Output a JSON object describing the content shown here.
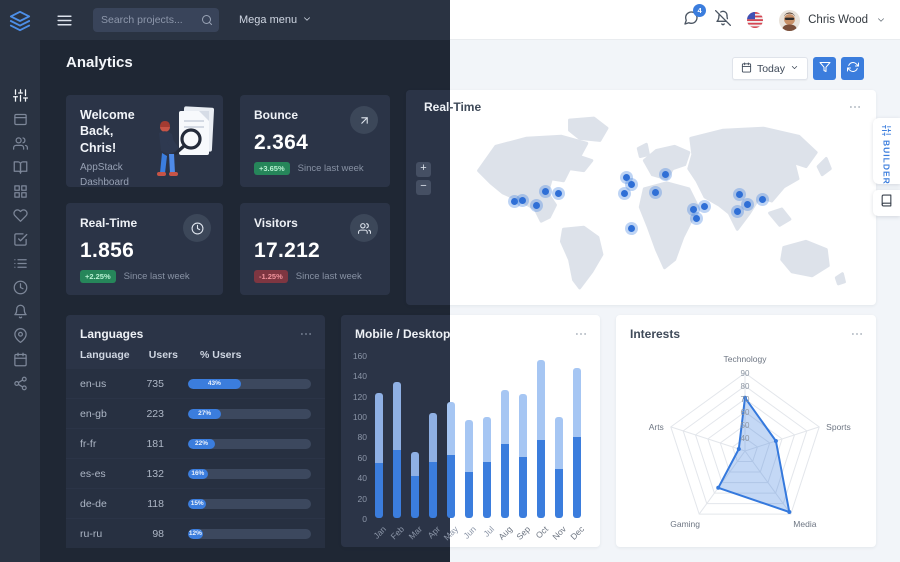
{
  "navbar": {
    "search_placeholder": "Search projects...",
    "mega_menu_label": "Mega menu",
    "user_name": "Chris Wood",
    "notification_count": "4"
  },
  "sidebar": {
    "items": [
      {
        "name": "sliders",
        "active": true
      },
      {
        "name": "window",
        "active": false
      },
      {
        "name": "users",
        "active": false
      },
      {
        "name": "book-open",
        "active": false
      },
      {
        "name": "grid",
        "active": false
      },
      {
        "name": "heart",
        "active": false
      },
      {
        "name": "check-square",
        "active": false
      },
      {
        "name": "list",
        "active": false
      },
      {
        "name": "clock",
        "active": false
      },
      {
        "name": "bell",
        "active": false
      },
      {
        "name": "map-pin",
        "active": false
      },
      {
        "name": "calendar",
        "active": false
      },
      {
        "name": "share-2",
        "active": false
      }
    ]
  },
  "page": {
    "title": "Analytics"
  },
  "controls": {
    "today_label": "Today"
  },
  "welcome": {
    "title": "Welcome\nBack,\nChris!",
    "subtitle": "AppStack\nDashboard"
  },
  "stats": [
    {
      "label": "Bounce",
      "value": "2.364",
      "delta": "+3.65%",
      "direction": "up",
      "note": "Since last week",
      "icon": "arrow-up-right"
    },
    {
      "label": "Real-Time",
      "value": "1.856",
      "delta": "+2.25%",
      "direction": "up",
      "note": "Since last week",
      "icon": "clock"
    },
    {
      "label": "Visitors",
      "value": "17.212",
      "delta": "-1.25%",
      "direction": "down",
      "note": "Since last week",
      "icon": "users"
    }
  ],
  "map_card": {
    "title": "Real-Time",
    "zoom_in": "+",
    "zoom_out": "−"
  },
  "languages": {
    "title": "Languages",
    "columns": [
      "Language",
      "Users",
      "% Users"
    ],
    "rows": [
      {
        "language": "en-us",
        "users": "735",
        "pct": 43,
        "pct_label": "43%"
      },
      {
        "language": "en-gb",
        "users": "223",
        "pct": 27,
        "pct_label": "27%"
      },
      {
        "language": "fr-fr",
        "users": "181",
        "pct": 22,
        "pct_label": "22%"
      },
      {
        "language": "es-es",
        "users": "132",
        "pct": 16,
        "pct_label": "16%"
      },
      {
        "language": "de-de",
        "users": "118",
        "pct": 15,
        "pct_label": "15%"
      },
      {
        "language": "ru-ru",
        "users": "98",
        "pct": 12,
        "pct_label": "12%"
      }
    ]
  },
  "chart_data": [
    {
      "id": "mobile_desktop",
      "type": "bar",
      "stacked": true,
      "title": "Mobile / Desktop",
      "categories": [
        "Jan",
        "Feb",
        "Mar",
        "Apr",
        "May",
        "Jun",
        "Jul",
        "Aug",
        "Sep",
        "Oct",
        "Nov",
        "Dec"
      ],
      "series": [
        {
          "name": "Mobile",
          "values": [
            54,
            67,
            41,
            55,
            62,
            45,
            55,
            73,
            60,
            76,
            48,
            79
          ]
        },
        {
          "name": "Desktop",
          "values": [
            69,
            66,
            24,
            48,
            52,
            51,
            44,
            53,
            62,
            79,
            51,
            68
          ]
        }
      ],
      "ylim": [
        0,
        160
      ],
      "yticks": [
        0,
        20,
        40,
        60,
        80,
        100,
        120,
        140,
        160
      ],
      "grid": false,
      "legend": "none"
    },
    {
      "id": "interests",
      "type": "radar",
      "title": "Interests",
      "axes": [
        "Technology",
        "Sports",
        "Media",
        "Gaming",
        "Arts"
      ],
      "values": [
        71,
        55,
        88,
        65,
        35
      ],
      "scale_min": 30,
      "scale_max": 90,
      "ticks": [
        40,
        50,
        60,
        70,
        80,
        90
      ]
    },
    {
      "id": "realtime_map",
      "type": "map",
      "title": "Real-Time",
      "markers_pct": [
        [
          15.2,
          48.4
        ],
        [
          17.1,
          47.9
        ],
        [
          20.5,
          50.5
        ],
        [
          22.7,
          43.2
        ],
        [
          25.8,
          44.2
        ],
        [
          41.9,
          35.8
        ],
        [
          43.1,
          39.5
        ],
        [
          41.4,
          44.2
        ],
        [
          48.9,
          43.7
        ],
        [
          51.1,
          34.2
        ],
        [
          43.1,
          62.6
        ],
        [
          57.8,
          52.6
        ],
        [
          58.6,
          57.4
        ],
        [
          60.5,
          51.1
        ],
        [
          68.7,
          44.7
        ],
        [
          70.6,
          50.0
        ],
        [
          68.4,
          53.7
        ],
        [
          74.2,
          47.4
        ]
      ]
    }
  ],
  "builder": {
    "label": "BUILDER"
  },
  "icons": {
    "logo_icon": "layers",
    "menu_icon": "menu",
    "search_icon": "search",
    "caret_icon": "chevron-down",
    "chat_icon": "message-circle",
    "mute_icon": "bell-off",
    "calendar_icon": "calendar",
    "filter_icon": "filter",
    "refresh_icon": "refresh-cw",
    "ellipsis_icon": "more-horizontal",
    "builder_icon": "sliders",
    "doc_icon": "book"
  },
  "colors": {
    "primary": "#3b7ddd",
    "bar_mobile": "#3b7ddd",
    "bar_desktop_dark": "#8fb0e4",
    "bar_desktop_light": "#a6c6f3",
    "success": "#26865a",
    "danger": "#7e3641",
    "dark_card": "#2b3447",
    "light_bg": "#f2f5f9"
  }
}
